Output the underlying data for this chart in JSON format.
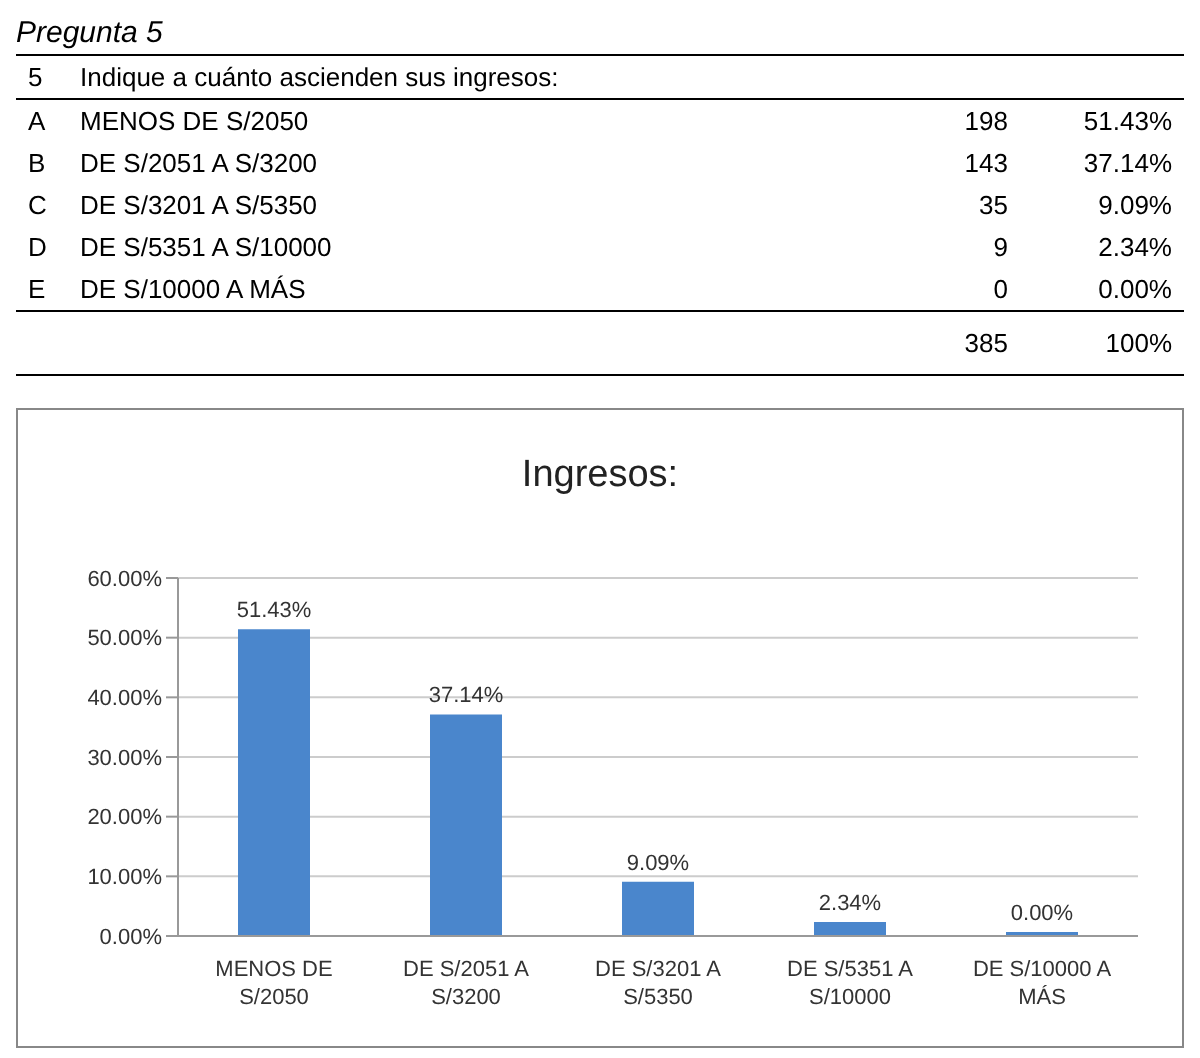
{
  "chart_data": [
    {
      "type": "other",
      "title": "Pregunta 5",
      "subtitle": "Indique a cuánto ascienden sus ingresos:",
      "categories": [
        "MENOS DE S/2050",
        "DE S/2051 A S/3200",
        "DE S/3201 A S/5350",
        "DE S/5351 A S/10000",
        "DE S/10000 A MÁS"
      ],
      "series": [
        {
          "values": [
            198,
            143,
            35,
            9,
            0
          ]
        },
        {
          "values": [
            51.43,
            37.14,
            9.09,
            2.34,
            0
          ],
          "value_labels": [
            "51.43%",
            "37.14%",
            "9.09%",
            "2.34%",
            "0.00%"
          ]
        }
      ],
      "data_labels": true,
      "annotations": [
        "5",
        "A",
        "B",
        "C",
        "D",
        "E",
        "385",
        "100%"
      ]
    },
    {
      "type": "bar",
      "title": "Ingresos:",
      "categories": [
        "MENOS DE S/2050",
        "DE S/2051 A S/3200",
        "DE S/3201 A S/5350",
        "DE S/5351 A S/10000",
        "DE S/10000 A MÁS"
      ],
      "values": [
        51.43,
        37.14,
        9.09,
        2.34,
        0
      ],
      "value_labels": [
        "51.43%",
        "37.14%",
        "9.09%",
        "2.34%",
        "0.00%"
      ],
      "color": "#4a86cc",
      "ylim": [
        0,
        60
      ],
      "yticks": [
        {
          "value": 0,
          "label": "0.00%"
        },
        {
          "value": 10,
          "label": "10.00%"
        },
        {
          "value": 20,
          "label": "20.00%"
        },
        {
          "value": 30,
          "label": "30.00%"
        },
        {
          "value": 40,
          "label": "40.00%"
        },
        {
          "value": 50,
          "label": "50.00%"
        },
        {
          "value": 60,
          "label": "60.00%"
        }
      ],
      "grid": "y",
      "legend": false
    }
  ]
}
